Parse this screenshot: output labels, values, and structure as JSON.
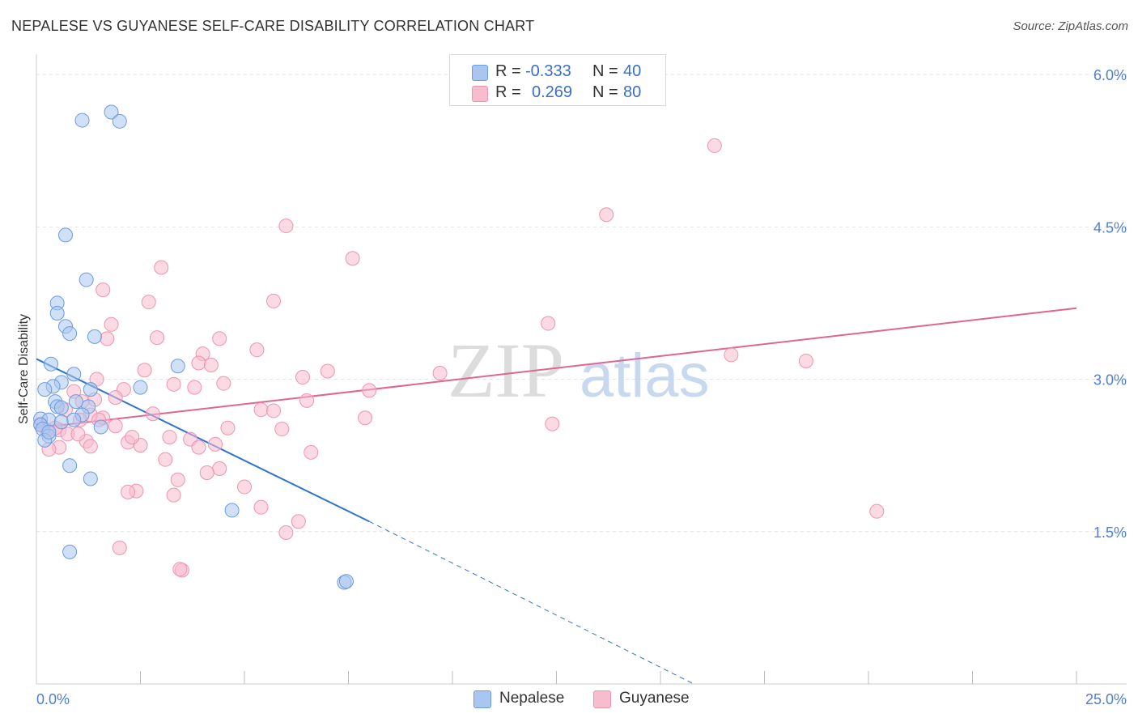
{
  "header": {
    "title": "NEPALESE VS GUYANESE SELF-CARE DISABILITY CORRELATION CHART",
    "source": "Source: ZipAtlas.com"
  },
  "watermark": {
    "zip": "ZIP",
    "atlas": "atlas"
  },
  "legend": {
    "rows": [
      {
        "r_label": "R =",
        "r_value": "-0.333",
        "n_label": "N =",
        "n_value": "40"
      },
      {
        "r_label": "R =",
        "r_value": "0.269",
        "n_label": "N =",
        "n_value": "80"
      }
    ]
  },
  "bottom_legend": {
    "items": [
      "Nepalese",
      "Guyanese"
    ]
  },
  "colors": {
    "nepalese_fill": "#a9c6f0",
    "nepalese_stroke": "#6b9be0",
    "nepalese_line": "#2f74d0",
    "guyanese_fill": "#f7bccd",
    "guyanese_stroke": "#ee94b1",
    "guyanese_line": "#e06592",
    "tick_text": "#4f7fcf",
    "grid": "#e3e3e3"
  },
  "chart_data": {
    "type": "scatter",
    "title": "NEPALESE VS GUYANESE SELF-CARE DISABILITY CORRELATION CHART",
    "xlabel": "",
    "ylabel": "Self-Care Disability",
    "xlim": [
      0,
      25
    ],
    "ylim": [
      0,
      6.2
    ],
    "x_tick_labels": [
      {
        "value": 0,
        "label": "0.0%"
      },
      {
        "value": 25,
        "label": "25.0%"
      }
    ],
    "y_tick_labels": [
      {
        "value": 1.5,
        "label": "1.5%"
      },
      {
        "value": 3.0,
        "label": "3.0%"
      },
      {
        "value": 4.5,
        "label": "4.5%"
      },
      {
        "value": 6.0,
        "label": "6.0%"
      }
    ],
    "x_minor_ticks": [
      2.5,
      5,
      7.5,
      10,
      12.5,
      15,
      17.5,
      20,
      22.5,
      25
    ],
    "grid": true,
    "legend_position": "top-center",
    "series": [
      {
        "name": "Nepalese",
        "r": -0.333,
        "n": 40,
        "trend": {
          "x0": 0,
          "y0": 3.2,
          "x1": 8.0,
          "y1": 1.6,
          "dashed_to_x": 15.8,
          "dashed_to_y": 0.0
        },
        "points": [
          [
            1.1,
            5.55
          ],
          [
            1.8,
            5.63
          ],
          [
            2.0,
            5.54
          ],
          [
            0.7,
            4.42
          ],
          [
            1.2,
            3.98
          ],
          [
            0.5,
            3.75
          ],
          [
            0.5,
            3.65
          ],
          [
            0.7,
            3.52
          ],
          [
            0.8,
            3.45
          ],
          [
            1.4,
            3.42
          ],
          [
            0.35,
            3.15
          ],
          [
            3.4,
            3.13
          ],
          [
            0.9,
            3.05
          ],
          [
            0.6,
            2.97
          ],
          [
            0.4,
            2.93
          ],
          [
            2.5,
            2.92
          ],
          [
            0.2,
            2.9
          ],
          [
            1.3,
            2.9
          ],
          [
            0.45,
            2.78
          ],
          [
            0.95,
            2.78
          ],
          [
            0.5,
            2.73
          ],
          [
            1.25,
            2.73
          ],
          [
            0.6,
            2.72
          ],
          [
            1.1,
            2.65
          ],
          [
            0.1,
            2.61
          ],
          [
            0.3,
            2.6
          ],
          [
            0.6,
            2.58
          ],
          [
            0.1,
            2.55
          ],
          [
            1.55,
            2.53
          ],
          [
            0.15,
            2.51
          ],
          [
            0.3,
            2.44
          ],
          [
            0.2,
            2.4
          ],
          [
            0.8,
            2.15
          ],
          [
            1.3,
            2.02
          ],
          [
            4.7,
            1.71
          ],
          [
            0.8,
            1.3
          ],
          [
            7.4,
            1.0
          ],
          [
            7.45,
            1.01
          ],
          [
            0.3,
            2.48
          ],
          [
            0.9,
            2.6
          ]
        ]
      },
      {
        "name": "Guyanese",
        "r": 0.269,
        "n": 80,
        "trend": {
          "x0": 0,
          "y0": 2.52,
          "x1": 25,
          "y1": 3.7
        },
        "points": [
          [
            16.3,
            5.3
          ],
          [
            13.7,
            4.62
          ],
          [
            6.0,
            4.51
          ],
          [
            7.6,
            4.19
          ],
          [
            3.0,
            4.1
          ],
          [
            1.6,
            3.88
          ],
          [
            5.7,
            3.77
          ],
          [
            2.7,
            3.76
          ],
          [
            12.3,
            3.55
          ],
          [
            1.8,
            3.54
          ],
          [
            1.7,
            3.4
          ],
          [
            2.9,
            3.41
          ],
          [
            4.4,
            3.4
          ],
          [
            5.3,
            3.29
          ],
          [
            16.7,
            3.24
          ],
          [
            4.0,
            3.25
          ],
          [
            18.5,
            3.18
          ],
          [
            3.9,
            3.16
          ],
          [
            4.2,
            3.14
          ],
          [
            2.6,
            3.09
          ],
          [
            7.0,
            3.08
          ],
          [
            9.7,
            3.06
          ],
          [
            6.4,
            3.02
          ],
          [
            1.45,
            3.0
          ],
          [
            3.3,
            2.95
          ],
          [
            4.5,
            2.96
          ],
          [
            3.8,
            2.92
          ],
          [
            2.1,
            2.9
          ],
          [
            8.0,
            2.89
          ],
          [
            0.9,
            2.88
          ],
          [
            1.4,
            2.8
          ],
          [
            1.9,
            2.82
          ],
          [
            1.1,
            2.78
          ],
          [
            6.5,
            2.79
          ],
          [
            5.4,
            2.7
          ],
          [
            5.7,
            2.69
          ],
          [
            2.8,
            2.66
          ],
          [
            1.3,
            2.65
          ],
          [
            1.6,
            2.62
          ],
          [
            7.9,
            2.62
          ],
          [
            1.05,
            2.6
          ],
          [
            12.4,
            2.56
          ],
          [
            1.9,
            2.54
          ],
          [
            4.6,
            2.52
          ],
          [
            5.9,
            2.51
          ],
          [
            0.55,
            2.5
          ],
          [
            0.25,
            2.5
          ],
          [
            0.75,
            2.46
          ],
          [
            3.2,
            2.43
          ],
          [
            3.7,
            2.41
          ],
          [
            2.2,
            2.38
          ],
          [
            1.2,
            2.39
          ],
          [
            4.3,
            2.36
          ],
          [
            2.5,
            2.35
          ],
          [
            1.3,
            2.34
          ],
          [
            3.9,
            2.33
          ],
          [
            0.55,
            2.33
          ],
          [
            0.3,
            2.31
          ],
          [
            6.6,
            2.28
          ],
          [
            3.1,
            2.21
          ],
          [
            4.4,
            2.12
          ],
          [
            4.1,
            2.08
          ],
          [
            3.4,
            2.01
          ],
          [
            5.0,
            1.94
          ],
          [
            2.4,
            1.9
          ],
          [
            2.2,
            1.89
          ],
          [
            3.3,
            1.86
          ],
          [
            5.4,
            1.74
          ],
          [
            6.3,
            1.6
          ],
          [
            6.0,
            1.49
          ],
          [
            2.0,
            1.34
          ],
          [
            3.5,
            1.12
          ],
          [
            3.45,
            1.13
          ],
          [
            20.2,
            1.7
          ],
          [
            0.1,
            2.56
          ],
          [
            0.45,
            2.52
          ],
          [
            1.5,
            2.6
          ],
          [
            2.3,
            2.43
          ],
          [
            0.7,
            2.7
          ],
          [
            1.0,
            2.46
          ]
        ]
      }
    ]
  }
}
